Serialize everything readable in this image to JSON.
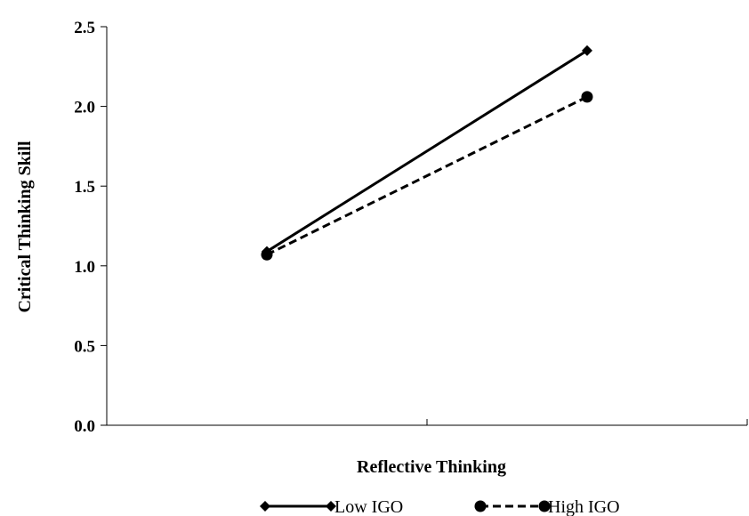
{
  "chart_data": {
    "type": "line",
    "title": "",
    "xlabel": "Reflective Thinking",
    "ylabel": "Critical Thinking Skill",
    "ylim": [
      0,
      2.5
    ],
    "yticks": [
      "0.0",
      "0.5",
      "1.0",
      "1.5",
      "2.0",
      "2.5"
    ],
    "categories": [
      "",
      ""
    ],
    "grid": false,
    "legend_position": "bottom",
    "series": [
      {
        "name": "Low IGO",
        "values": [
          1.09,
          2.35
        ],
        "line_style": "solid",
        "marker": "diamond",
        "color": "#000000"
      },
      {
        "name": "High IGO",
        "values": [
          1.07,
          2.06
        ],
        "line_style": "dashed",
        "marker": "circle",
        "color": "#000000"
      }
    ]
  }
}
